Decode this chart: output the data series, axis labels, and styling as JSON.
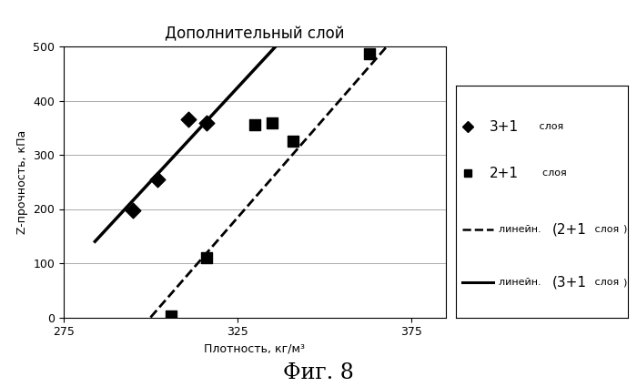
{
  "title": "Дополнительный слой",
  "xlabel": "Плотность, кг/м³",
  "ylabel": "Z-прочность, кПа",
  "xlim": [
    275,
    385
  ],
  "ylim": [
    0,
    500
  ],
  "xticks": [
    275,
    325,
    375
  ],
  "yticks": [
    0,
    100,
    200,
    300,
    400,
    500
  ],
  "series_31": {
    "x": [
      295,
      302,
      311,
      316
    ],
    "y": [
      197,
      255,
      365,
      358
    ],
    "color": "#000000",
    "marker": "D",
    "markersize": 6,
    "label_big": "3+1",
    "label_small": " слоя"
  },
  "series_21": {
    "x": [
      306,
      316,
      330,
      335,
      341,
      363
    ],
    "y": [
      3,
      110,
      355,
      358,
      325,
      487
    ],
    "color": "#000000",
    "marker": "s",
    "markersize": 6,
    "label_big": "2+1",
    "label_small": "  слоя"
  },
  "line_31": {
    "x": [
      284,
      336
    ],
    "y": [
      140,
      500
    ],
    "color": "#000000",
    "linestyle": "solid",
    "linewidth": 2.5,
    "label_pre": "линейн. ",
    "label_big": "(3+1",
    "label_post": " слоя   )"
  },
  "line_21": {
    "x": [
      300,
      368
    ],
    "y": [
      0,
      500
    ],
    "color": "#000000",
    "linestyle": "dashed",
    "linewidth": 2,
    "label_pre": "линейн. ",
    "label_big": "(2+1",
    "label_post": " слоя   )"
  },
  "fig_label": "Фиг. 8",
  "background_color": "#ffffff",
  "plot_background": "#ffffff",
  "title_fontsize": 12,
  "axis_label_fontsize": 9,
  "tick_fontsize": 9,
  "legend_fontsize_small": 8,
  "legend_fontsize_big": 11
}
